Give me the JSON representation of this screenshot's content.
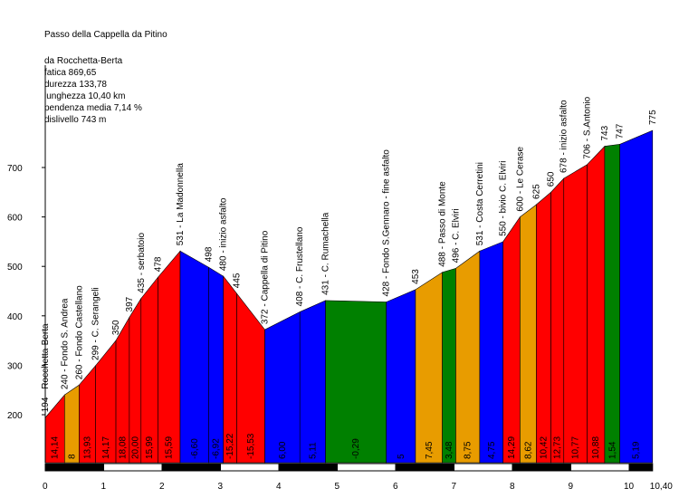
{
  "chart_data": {
    "type": "area",
    "title": "Passo della Cappella da Pitino",
    "stats": {
      "start": "da Rocchetta-Berta",
      "fatica": "fatica 869,65",
      "durezza": "durezza 133,78",
      "lunghezza": "lunghezza 10,40 km",
      "pendenza": "pendenza media 7,14 %",
      "dislivello": "dislivello 743 m"
    },
    "xlim": [
      0,
      10.4
    ],
    "ylim": [
      100,
      800
    ],
    "x_ticks": [
      "0",
      "1",
      "2",
      "3",
      "4",
      "5",
      "6",
      "7",
      "8",
      "9",
      "10",
      "10,40"
    ],
    "x_tick_values": [
      0,
      1,
      2,
      3,
      4,
      5,
      6,
      7,
      8,
      9,
      10,
      10.4
    ],
    "y_ticks": [
      200,
      300,
      400,
      500,
      600,
      700
    ],
    "points": [
      {
        "x": 0.0,
        "y": 194,
        "label": "194 - Rocchetta-Berta"
      },
      {
        "x": 0.33,
        "y": 240,
        "label": "240 - Fondo S. Andrea"
      },
      {
        "x": 0.58,
        "y": 260,
        "label": "260 - Fondo Castellano"
      },
      {
        "x": 0.86,
        "y": 299,
        "label": "299 - C. Serangeli"
      },
      {
        "x": 1.21,
        "y": 350,
        "label": "350"
      },
      {
        "x": 1.44,
        "y": 397,
        "label": "397"
      },
      {
        "x": 1.64,
        "y": 435,
        "label": "435 - serbatoio"
      },
      {
        "x": 1.93,
        "y": 478,
        "label": "478"
      },
      {
        "x": 2.31,
        "y": 531,
        "label": "531 - La Madonnella"
      },
      {
        "x": 2.8,
        "y": 498,
        "label": "498"
      },
      {
        "x": 3.05,
        "y": 480,
        "label": "480 - inizio asfalto"
      },
      {
        "x": 3.28,
        "y": 445,
        "label": "445"
      },
      {
        "x": 3.76,
        "y": 372,
        "label": "372 - Cappella di Pitino"
      },
      {
        "x": 4.36,
        "y": 408,
        "label": "408 - C. Frustellano"
      },
      {
        "x": 4.8,
        "y": 431,
        "label": "431 - C. Rumachella"
      },
      {
        "x": 5.84,
        "y": 428,
        "label": "428 - Fondo S.Gennaro - fine asfalto"
      },
      {
        "x": 6.34,
        "y": 453,
        "label": "453"
      },
      {
        "x": 6.8,
        "y": 488,
        "label": "488 - Passo di Monte"
      },
      {
        "x": 7.03,
        "y": 496,
        "label": "496 - C. Elviri"
      },
      {
        "x": 7.44,
        "y": 531,
        "label": "531 - Costa Cerretini"
      },
      {
        "x": 7.84,
        "y": 550,
        "label": "550 - bivio C. Elviri"
      },
      {
        "x": 8.13,
        "y": 600,
        "label": "600 - Le Cerase"
      },
      {
        "x": 8.41,
        "y": 625,
        "label": "625"
      },
      {
        "x": 8.66,
        "y": 650,
        "label": "650"
      },
      {
        "x": 8.88,
        "y": 678,
        "label": "678 - inizio asfalto"
      },
      {
        "x": 9.28,
        "y": 706,
        "label": "706 - S.Antonio"
      },
      {
        "x": 9.58,
        "y": 743,
        "label": "743"
      },
      {
        "x": 9.84,
        "y": 747,
        "label": "747"
      },
      {
        "x": 10.4,
        "y": 775,
        "label": "775"
      }
    ],
    "segments": [
      {
        "grad": "14,14",
        "color": "#ff0000"
      },
      {
        "grad": "8",
        "color": "#e89c00"
      },
      {
        "grad": "13,93",
        "color": "#ff0000"
      },
      {
        "grad": "14,17",
        "color": "#ff0000"
      },
      {
        "grad": "18,08",
        "color": "#ff0000"
      },
      {
        "grad": "20,00",
        "color": "#ff0000"
      },
      {
        "grad": "15,99",
        "color": "#ff0000"
      },
      {
        "grad": "15,59",
        "color": "#ff0000"
      },
      {
        "grad": "-6,60",
        "color": "#0000ff"
      },
      {
        "grad": "-6,92",
        "color": "#0000ff"
      },
      {
        "grad": "-15,22",
        "color": "#ff0000"
      },
      {
        "grad": "-15,53",
        "color": "#ff0000"
      },
      {
        "grad": "6,00",
        "color": "#0000ff"
      },
      {
        "grad": "5,11",
        "color": "#0000ff"
      },
      {
        "grad": "-0,29",
        "color": "#008000"
      },
      {
        "grad": "5",
        "color": "#0000ff"
      },
      {
        "grad": "7,45",
        "color": "#e89c00"
      },
      {
        "grad": "3,48",
        "color": "#008000"
      },
      {
        "grad": "8,75",
        "color": "#e89c00"
      },
      {
        "grad": "4,75",
        "color": "#0000ff"
      },
      {
        "grad": "14,29",
        "color": "#ff0000"
      },
      {
        "grad": "8,62",
        "color": "#e89c00"
      },
      {
        "grad": "10,42",
        "color": "#ff0000"
      },
      {
        "grad": "12,73",
        "color": "#ff0000"
      },
      {
        "grad": "10,77",
        "color": "#ff0000"
      },
      {
        "grad": "10,88",
        "color": "#ff0000"
      },
      {
        "grad": "1,54",
        "color": "#008000"
      },
      {
        "grad": "5,19",
        "color": "#0000ff"
      }
    ]
  }
}
